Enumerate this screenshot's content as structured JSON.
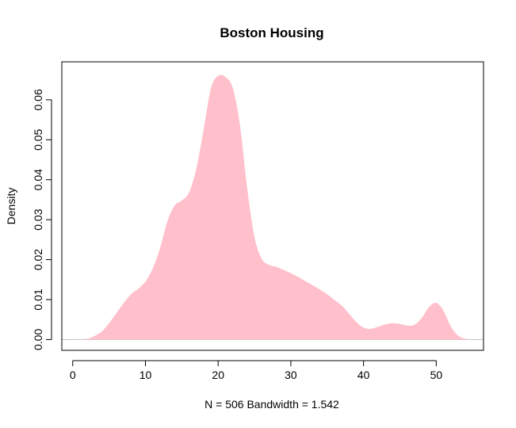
{
  "chart_data": {
    "type": "area",
    "title": "Boston Housing",
    "xlabel": "N = 506   Bandwidth = 1.542",
    "ylabel": "Density",
    "xlim": [
      -1.5,
      56.5
    ],
    "ylim": [
      -0.0027,
      0.0695
    ],
    "x_ticks": [
      0,
      10,
      20,
      30,
      40,
      50
    ],
    "x_tick_labels": [
      "0",
      "10",
      "20",
      "30",
      "40",
      "50"
    ],
    "y_ticks": [
      0.0,
      0.01,
      0.02,
      0.03,
      0.04,
      0.05,
      0.06
    ],
    "y_tick_labels": [
      "0.00",
      "0.01",
      "0.02",
      "0.03",
      "0.04",
      "0.05",
      "0.06"
    ],
    "fill_color": "#FFC0CB",
    "baseline_color": "#BEBEBE",
    "series": [
      {
        "x": [
          0.4,
          2,
          3,
          4,
          5,
          6,
          7,
          8,
          9,
          10,
          11,
          12,
          13,
          14,
          15,
          16,
          17,
          18,
          19,
          20,
          21,
          22,
          23,
          24,
          25,
          26,
          27,
          28,
          29,
          30,
          31,
          32,
          33,
          34,
          35,
          36,
          37,
          38,
          39,
          40,
          41,
          42,
          43,
          44,
          45,
          46,
          47,
          48,
          49,
          50,
          51,
          52,
          53,
          54,
          55,
          56
        ],
        "y": [
          0.0,
          0.0002,
          0.0009,
          0.002,
          0.0041,
          0.0066,
          0.0091,
          0.0113,
          0.0127,
          0.0145,
          0.0178,
          0.0228,
          0.0295,
          0.0335,
          0.0348,
          0.0368,
          0.0428,
          0.0525,
          0.0628,
          0.066,
          0.0657,
          0.063,
          0.0537,
          0.0378,
          0.0257,
          0.0202,
          0.0187,
          0.0182,
          0.0174,
          0.0166,
          0.0157,
          0.0146,
          0.0136,
          0.0125,
          0.0113,
          0.0099,
          0.0085,
          0.0065,
          0.0044,
          0.003,
          0.0027,
          0.0032,
          0.0038,
          0.0041,
          0.0039,
          0.0035,
          0.0037,
          0.0054,
          0.0081,
          0.0092,
          0.0072,
          0.0033,
          0.001,
          0.0002,
          0.0,
          0.0
        ]
      }
    ]
  }
}
